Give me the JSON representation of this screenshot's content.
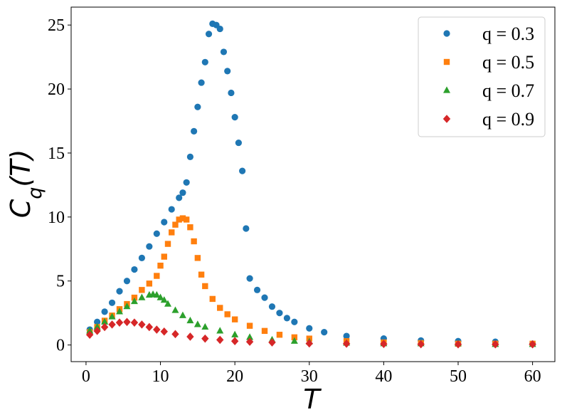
{
  "chart_data": {
    "type": "scatter",
    "title": "",
    "xlabel": "T",
    "ylabel": {
      "base": "C",
      "subscript": "q",
      "suffix": "(T)"
    },
    "xlim": [
      -2.0,
      63.0
    ],
    "ylim": [
      -1.3,
      26.4
    ],
    "xticks": [
      0,
      10,
      20,
      30,
      40,
      50,
      60
    ],
    "yticks": [
      0,
      5,
      10,
      15,
      20,
      25
    ],
    "grid": false,
    "legend_position": "top-right",
    "series": [
      {
        "name": "q = 0.3",
        "marker": "circle",
        "color": "#1f77b4",
        "x": [
          0.5,
          1.5,
          2.5,
          3.5,
          4.5,
          5.5,
          6.5,
          7.5,
          8.5,
          9.5,
          10.5,
          11.5,
          12.5,
          13.0,
          13.5,
          14.0,
          14.5,
          15.0,
          15.5,
          16.0,
          16.5,
          17.0,
          17.5,
          18.0,
          18.5,
          19.0,
          19.5,
          20.0,
          20.5,
          21.0,
          21.5,
          22.0,
          23.0,
          24.0,
          25.0,
          26.0,
          27.0,
          28.0,
          30.0,
          32.0,
          35.0,
          40.0,
          45.0,
          50.0,
          55.0,
          60.0
        ],
        "y": [
          1.2,
          1.8,
          2.6,
          3.3,
          4.2,
          5.0,
          5.9,
          6.8,
          7.7,
          8.7,
          9.6,
          10.6,
          11.5,
          11.9,
          12.7,
          14.7,
          16.7,
          18.6,
          20.5,
          22.1,
          24.3,
          25.1,
          25.0,
          24.7,
          22.9,
          21.4,
          19.7,
          17.8,
          15.8,
          13.6,
          9.1,
          5.2,
          4.3,
          3.7,
          3.0,
          2.5,
          2.1,
          1.8,
          1.3,
          1.0,
          0.7,
          0.5,
          0.35,
          0.3,
          0.25,
          0.1
        ]
      },
      {
        "name": "q = 0.5",
        "marker": "square",
        "color": "#ff7f0e",
        "x": [
          0.5,
          1.5,
          2.5,
          3.5,
          4.5,
          5.5,
          6.5,
          7.5,
          8.5,
          9.5,
          10.0,
          10.5,
          11.0,
          11.5,
          12.0,
          12.5,
          13.0,
          13.5,
          14.0,
          14.5,
          15.0,
          15.5,
          16.0,
          17.0,
          18.0,
          19.0,
          20.0,
          22.0,
          24.0,
          26.0,
          28.0,
          30.0,
          35.0,
          40.0,
          45.0,
          50.0,
          55.0,
          60.0
        ],
        "y": [
          1.0,
          1.4,
          1.9,
          2.3,
          2.8,
          3.2,
          3.7,
          4.3,
          4.8,
          5.4,
          6.2,
          6.9,
          7.9,
          8.8,
          9.4,
          9.8,
          9.9,
          9.8,
          9.2,
          8.1,
          6.8,
          5.5,
          4.6,
          3.6,
          2.9,
          2.4,
          2.0,
          1.5,
          1.1,
          0.8,
          0.6,
          0.5,
          0.3,
          0.2,
          0.15,
          0.1,
          0.1,
          0.1
        ]
      },
      {
        "name": "q = 0.7",
        "marker": "triangle",
        "color": "#2ca02c",
        "x": [
          0.5,
          1.5,
          2.5,
          3.5,
          4.5,
          5.5,
          6.5,
          7.5,
          8.5,
          9.0,
          9.5,
          10.0,
          10.5,
          11.0,
          12.0,
          13.0,
          14.0,
          15.0,
          16.0,
          18.0,
          20.0,
          22.0,
          25.0,
          28.0,
          30.0,
          35.0,
          40.0,
          45.0,
          50.0,
          55.0,
          60.0
        ],
        "y": [
          1.1,
          1.4,
          1.8,
          2.2,
          2.6,
          3.0,
          3.4,
          3.7,
          3.9,
          3.95,
          3.9,
          3.7,
          3.5,
          3.2,
          2.7,
          2.3,
          1.9,
          1.6,
          1.4,
          1.1,
          0.8,
          0.6,
          0.4,
          0.3,
          0.25,
          0.15,
          0.1,
          0.1,
          0.1,
          0.05,
          0.05
        ]
      },
      {
        "name": "q = 0.9",
        "marker": "diamond",
        "color": "#d62728",
        "x": [
          0.5,
          1.5,
          2.5,
          3.5,
          4.5,
          5.5,
          6.5,
          7.5,
          8.5,
          9.5,
          10.5,
          12.0,
          14.0,
          16.0,
          18.0,
          20.0,
          22.0,
          25.0,
          30.0,
          35.0,
          40.0,
          45.0,
          50.0,
          55.0,
          60.0
        ],
        "y": [
          0.8,
          1.1,
          1.4,
          1.6,
          1.75,
          1.8,
          1.75,
          1.6,
          1.4,
          1.2,
          1.05,
          0.85,
          0.65,
          0.5,
          0.4,
          0.3,
          0.25,
          0.2,
          0.12,
          0.1,
          0.08,
          0.06,
          0.05,
          0.05,
          0.05
        ]
      }
    ]
  }
}
